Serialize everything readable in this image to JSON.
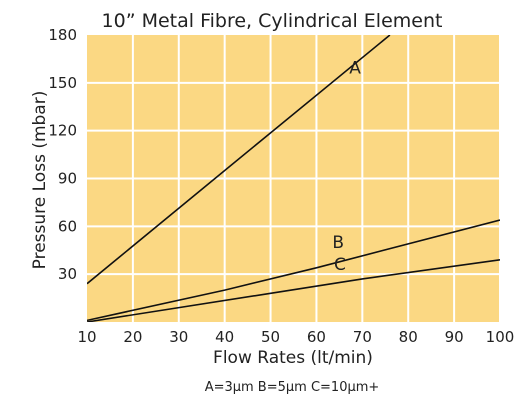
{
  "chart_data": {
    "type": "line",
    "title": "10” Metal Fibre, Cylindrical Element",
    "xlabel": "Flow Rates (lt/min)",
    "ylabel": "Pressure Loss (mbar)",
    "xlim": [
      10,
      100
    ],
    "ylim": [
      0,
      180
    ],
    "x_ticks": [
      10,
      20,
      30,
      40,
      50,
      60,
      70,
      80,
      90,
      100
    ],
    "y_ticks": [
      30,
      60,
      90,
      120,
      150,
      180
    ],
    "grid": true,
    "background_color": "#fbd883",
    "grid_color": "#ffffff",
    "line_color": "#111111",
    "series": [
      {
        "name": "A",
        "x": [
          10,
          40,
          76
        ],
        "y": [
          24,
          95,
          180
        ]
      },
      {
        "name": "B",
        "x": [
          10,
          40,
          60,
          100
        ],
        "y": [
          1,
          20,
          34,
          64
        ]
      },
      {
        "name": "C",
        "x": [
          10,
          50,
          70,
          100
        ],
        "y": [
          0,
          18,
          27,
          39
        ]
      }
    ],
    "caption": "A=3µm B=5µm C=10µm+"
  }
}
